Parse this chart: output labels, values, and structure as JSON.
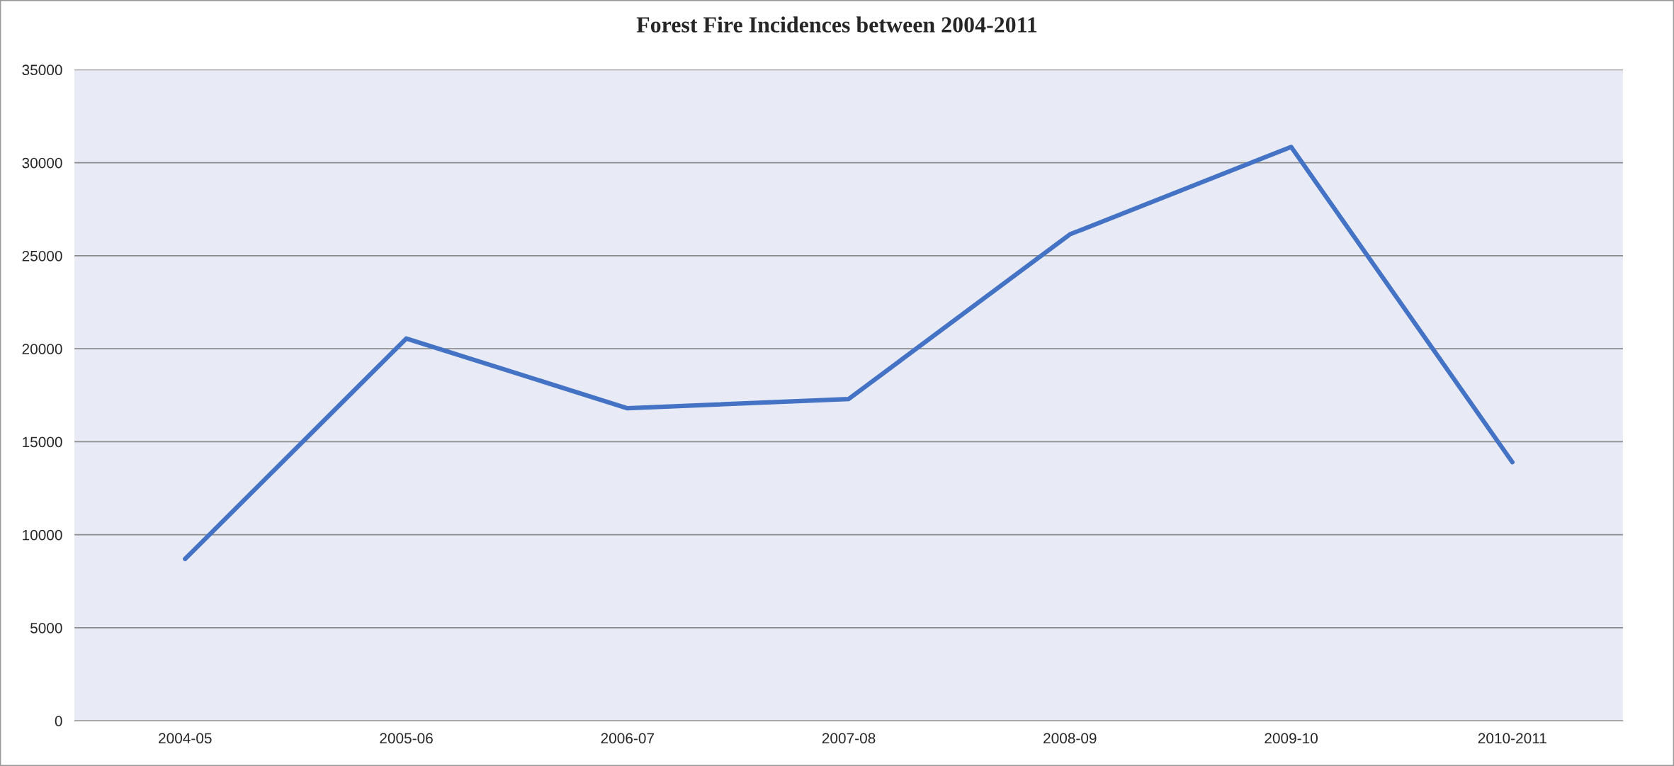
{
  "chart_data": {
    "type": "line",
    "title": "Forest Fire Incidences between 2004-2011",
    "categories": [
      "2004-05",
      "2005-06",
      "2006-07",
      "2007-08",
      "2008-09",
      "2009-10",
      "2010-2011"
    ],
    "series": [
      {
        "color": "#4472c4",
        "values": [
          8700,
          20550,
          16800,
          17300,
          26150,
          30850,
          13900
        ]
      }
    ],
    "ylim": [
      0,
      35000
    ],
    "yticks": [
      0,
      5000,
      10000,
      15000,
      20000,
      25000,
      30000,
      35000
    ],
    "grid": "y",
    "marker": "none",
    "line_style": "solid"
  }
}
